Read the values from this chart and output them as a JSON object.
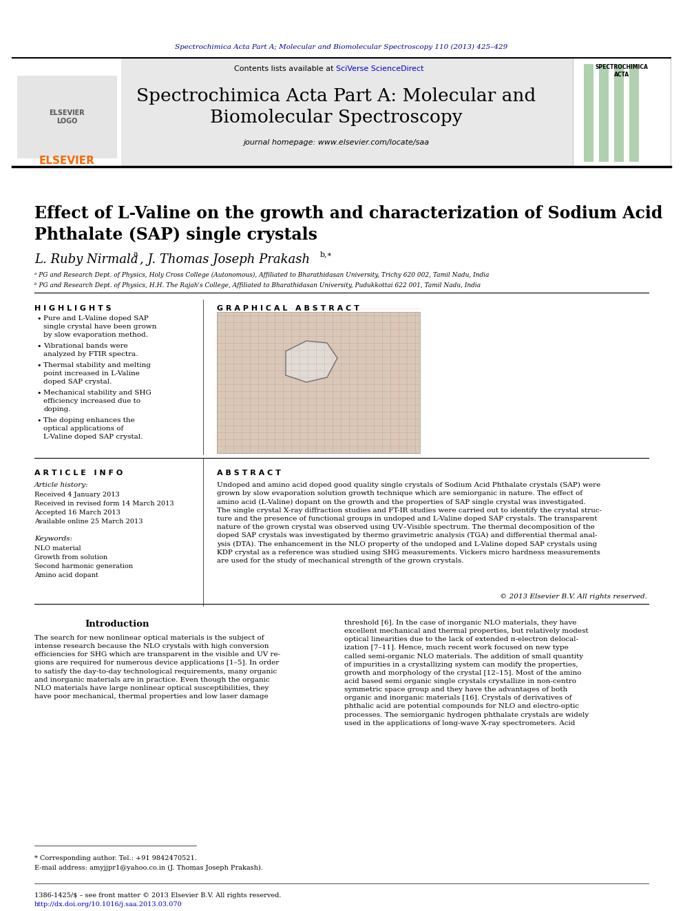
{
  "page_bg": "#ffffff",
  "top_journal_line": "Spectrochimica Acta Part A; Molecular and Biomolecular Spectroscopy 110 (2013) 425–429",
  "top_journal_color": "#00008B",
  "journal_title_main": "Spectrochimica Acta Part A: Molecular and\nBiomolecular Spectroscopy",
  "journal_subtitle": "Contents lists available at SciVerse ScienceDirect",
  "journal_homepage": "journal homepage: www.elsevier.com/locate/saa",
  "sciverse_color": "#0000CD",
  "header_bg": "#E8E8E8",
  "elsevier_color": "#FF6600",
  "paper_title": "Effect of L-Valine on the growth and characterization of Sodium Acid\nPhthalate (SAP) single crystals",
  "highlights_title": "H I G H L I G H T S",
  "highlights": [
    "Pure and L-Valine doped SAP single crystal have been grown by slow evaporation method.",
    "Vibrational bands were analyzed by FTIR spectra.",
    "Thermal stability and melting point increased in L-Valine doped SAP crystal.",
    "Mechanical stability and SHG efficiency increased due to doping.",
    "The doping enhances the optical applications of L-Valine doped SAP crystal."
  ],
  "graphical_abstract_title": "G R A P H I C A L   A B S T R A C T",
  "article_info_title": "A R T I C L E   I N F O",
  "article_history_title": "Article history:",
  "received": "Received 4 January 2013",
  "revised": "Received in revised form 14 March 2013",
  "accepted": "Accepted 16 March 2013",
  "available": "Available online 25 March 2013",
  "keywords_title": "Keywords:",
  "keywords": [
    "NLO material",
    "Growth from solution",
    "Second harmonic generation",
    "Amino acid dopant"
  ],
  "abstract_title": "A B S T R A C T",
  "abstract_text": "Undoped and amino acid doped good quality single crystals of Sodium Acid Phthalate crystals (SAP) were\ngrown by slow evaporation solution growth technique which are semiorganic in nature. The effect of\namino acid (L-Valine) dopant on the growth and the properties of SAP single crystal was investigated.\nThe single crystal X-ray diffraction studies and FT-IR studies were carried out to identify the crystal struc-\nture and the presence of functional groups in undoped and L-Valine doped SAP crystals. The transparent\nnature of the grown crystal was observed using UV–Visible spectrum. The thermal decomposition of the\ndoped SAP crystals was investigated by thermo gravimetric analysis (TGA) and differential thermal anal-\nysis (DTA). The enhancement in the NLO property of the undoped and L-Valine doped SAP crystals using\nKDP crystal as a reference was studied using SHG measurements. Vickers micro hardness measurements\nare used for the study of mechanical strength of the grown crystals.",
  "copyright": "© 2013 Elsevier B.V. All rights reserved.",
  "intro_title": "Introduction",
  "intro_text1": "The search for new nonlinear optical materials is the subject of\nintense research because the NLO crystals with high conversion\nefficiencies for SHG which are transparent in the visible and UV re-\ngions are required for numerous device applications [1–5]. In order\nto satisfy the day-to-day technological requirements, many organic\nand inorganic materials are in practice. Even though the organic\nNLO materials have large nonlinear optical susceptibilities, they\nhave poor mechanical, thermal properties and low laser damage",
  "intro_text2": "threshold [6]. In the case of inorganic NLO materials, they have\nexcellent mechanical and thermal properties, but relatively modest\noptical linearities due to the lack of extended π-electron delocal-\nization [7–11]. Hence, much recent work focused on new type\ncalled semi-organic NLO materials. The addition of small quantity\nof impurities in a crystallizing system can modify the properties,\ngrowth and morphology of the crystal [12–15]. Most of the amino\nacid based semi organic single crystals crystallize in non-centro\nsymmetric space group and they have the advantages of both\norganic and inorganic materials [16]. Crystals of derivatives of\nphthalic acid are potential compounds for NLO and electro-optic\nprocesses. The semiorganic hydrogen phthalate crystals are widely\nused in the applications of long-wave X-ray spectrometers. Acid",
  "footnote1": "* Corresponding author. Tel.: +91 9842470521.",
  "footnote2": "E-mail address: amyjjpr1@yahoo.co.in (J. Thomas Joseph Prakash).",
  "bottom_line1": "1386-1425/$ – see front matter © 2013 Elsevier B.V. All rights reserved.",
  "bottom_line2": "http://dx.doi.org/10.1016/j.saa.2013.03.070"
}
